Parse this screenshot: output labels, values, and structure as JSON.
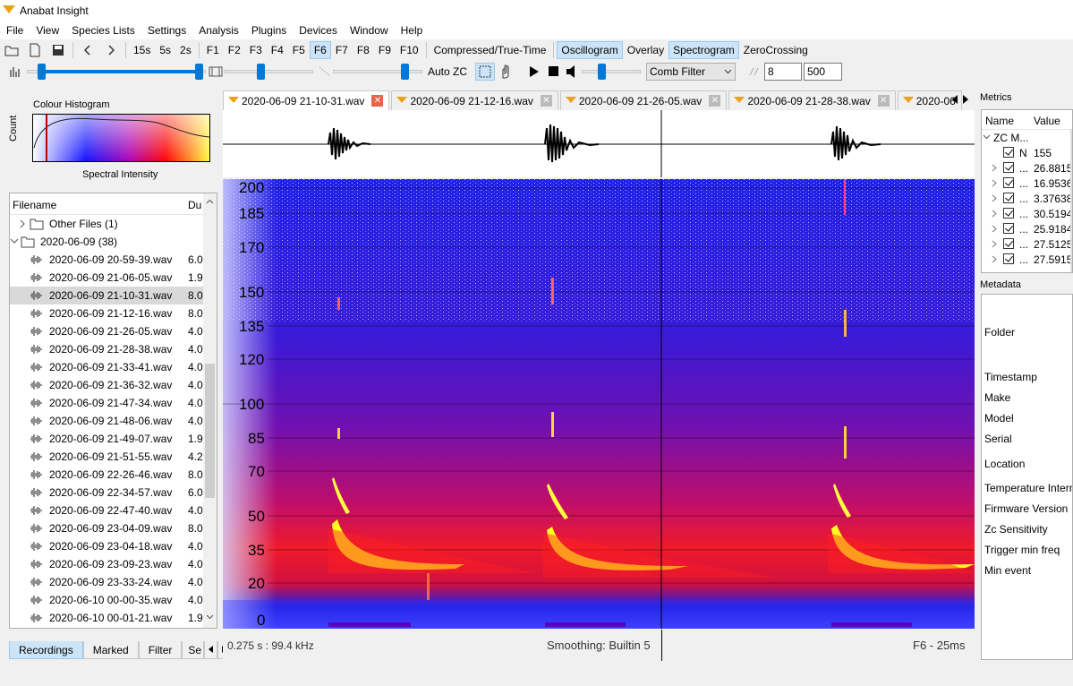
{
  "app": {
    "title": "Anabat Insight"
  },
  "menu": [
    "File",
    "View",
    "Species Lists",
    "Settings",
    "Analysis",
    "Plugins",
    "Devices",
    "Window",
    "Help"
  ],
  "toolbar1": {
    "durations": [
      "15s",
      "5s",
      "2s"
    ],
    "fkeys": [
      "F1",
      "F2",
      "F3",
      "F4",
      "F5",
      "F6",
      "F7",
      "F8",
      "F9",
      "F10"
    ],
    "active_fkey": "F6",
    "compressed": "Compressed/True-Time",
    "oscillogram": "Oscillogram",
    "overlay": "Overlay",
    "spectrogram": "Spectrogram",
    "zerocrossing": "ZeroCrossing"
  },
  "toolbar2": {
    "auto_zc": "Auto ZC",
    "filter": "Comb Filter",
    "spin1": "8",
    "spin2": "500"
  },
  "histogram": {
    "title": "Colour Histogram",
    "ylabel": "Count",
    "xlabel": "Spectral Intensity"
  },
  "files": {
    "col_name": "Filename",
    "col_dur": "Du",
    "folders": [
      {
        "name": "Other Files (1)"
      },
      {
        "name": "2020-06-09 (38)"
      }
    ],
    "items": [
      {
        "name": "2020-06-09 20-59-39.wav",
        "dur": "6.0"
      },
      {
        "name": "2020-06-09 21-06-05.wav",
        "dur": "1.9"
      },
      {
        "name": "2020-06-09 21-10-31.wav",
        "dur": "8.0"
      },
      {
        "name": "2020-06-09 21-12-16.wav",
        "dur": "8.0"
      },
      {
        "name": "2020-06-09 21-26-05.wav",
        "dur": "4.0"
      },
      {
        "name": "2020-06-09 21-28-38.wav",
        "dur": "4.0"
      },
      {
        "name": "2020-06-09 21-33-41.wav",
        "dur": "4.0"
      },
      {
        "name": "2020-06-09 21-36-32.wav",
        "dur": "4.0"
      },
      {
        "name": "2020-06-09 21-47-34.wav",
        "dur": "4.0"
      },
      {
        "name": "2020-06-09 21-48-06.wav",
        "dur": "4.0"
      },
      {
        "name": "2020-06-09 21-49-07.wav",
        "dur": "1.9"
      },
      {
        "name": "2020-06-09 21-51-55.wav",
        "dur": "4.2"
      },
      {
        "name": "2020-06-09 22-26-46.wav",
        "dur": "8.0"
      },
      {
        "name": "2020-06-09 22-34-57.wav",
        "dur": "6.0"
      },
      {
        "name": "2020-06-09 22-47-40.wav",
        "dur": "4.0"
      },
      {
        "name": "2020-06-09 23-04-09.wav",
        "dur": "8.0"
      },
      {
        "name": "2020-06-09 23-04-18.wav",
        "dur": "4.0"
      },
      {
        "name": "2020-06-09 23-09-23.wav",
        "dur": "4.0"
      },
      {
        "name": "2020-06-09 23-33-24.wav",
        "dur": "4.0"
      },
      {
        "name": "2020-06-10 00-00-35.wav",
        "dur": "4.0"
      },
      {
        "name": "2020-06-10 00-01-21.wav",
        "dur": "1.9"
      }
    ]
  },
  "bottom_tabs": [
    "Recordings",
    "Marked",
    "Filter",
    "Se"
  ],
  "doc_tabs": [
    "2020-06-09 21-10-31.wav",
    "2020-06-09 21-12-16.wav",
    "2020-06-09 21-26-05.wav",
    "2020-06-09 21-28-38.wav",
    "2020-06"
  ],
  "spectrogram": {
    "yticks": [
      "200",
      "185",
      "170",
      "150",
      "135",
      "120",
      "100",
      "85",
      "70",
      "50",
      "35",
      "20",
      "0"
    ],
    "status_left": "0.275 s : 99.4 kHz",
    "status_mid": "Smoothing: Builtin 5",
    "status_right": "F6 - 25ms"
  },
  "metrics": {
    "title": "Metrics",
    "col_name": "Name",
    "col_value": "Value",
    "group": "ZC M...",
    "n_label": "N",
    "n_value": "155",
    "rows": [
      {
        "name": "...",
        "value": "26.8815"
      },
      {
        "name": "...",
        "value": "16.9536"
      },
      {
        "name": "...",
        "value": "3.37638"
      },
      {
        "name": "...",
        "value": "30.5194"
      },
      {
        "name": "...",
        "value": "25.9184"
      },
      {
        "name": "...",
        "value": "27.5125"
      },
      {
        "name": "...",
        "value": "27.5915"
      }
    ]
  },
  "metadata": {
    "title": "Metadata",
    "labels": [
      "Folder",
      "Timestamp",
      "Make",
      "Model",
      "Serial",
      "Location",
      "Temperature Intern",
      "Firmware Version",
      "Zc Sensitivity",
      "Trigger min freq",
      "Min event"
    ]
  },
  "colors": {
    "accent": "#0078d7",
    "active_tab": "#cce4f7",
    "close": "#e8634a",
    "bat_logo": "#e8a317"
  }
}
